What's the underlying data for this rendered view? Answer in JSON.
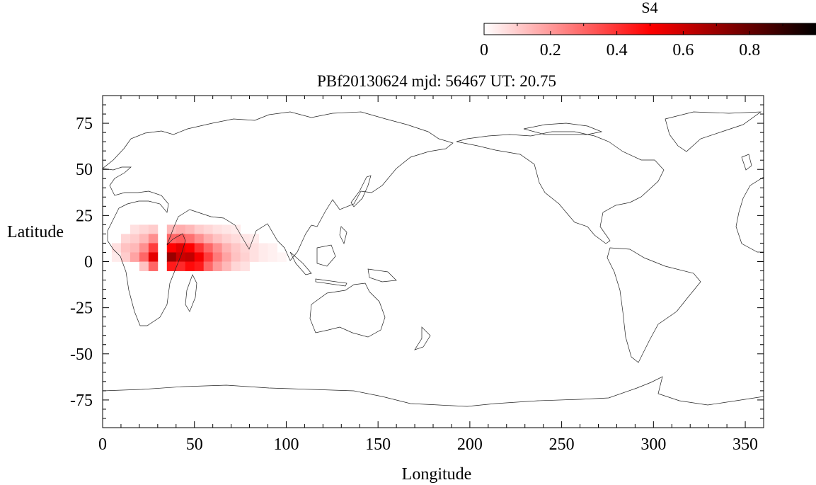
{
  "title": "PBf20130624  mjd: 56467  UT:  20.75",
  "colorbar": {
    "label": "S4",
    "range": [
      0,
      1
    ],
    "ticks": [
      "0",
      "0.2",
      "0.4",
      "0.6",
      "0.8"
    ],
    "tick_values": [
      0,
      0.2,
      0.4,
      0.6,
      0.8
    ],
    "colors": [
      "#ffffff",
      "#ff0000",
      "#000000"
    ]
  },
  "chart_data": {
    "type": "heatmap",
    "title": "PBf20130624  mjd: 56467  UT:  20.75",
    "xlabel": "Longitude",
    "ylabel": "Latitude",
    "xlim": [
      0,
      360
    ],
    "ylim": [
      -90,
      90
    ],
    "x_ticks": [
      "0",
      "50",
      "100",
      "150",
      "200",
      "250",
      "300",
      "350"
    ],
    "x_tick_values": [
      0,
      50,
      100,
      150,
      200,
      250,
      300,
      350
    ],
    "y_ticks": [
      "75",
      "50",
      "25",
      "0",
      "-25",
      "-50",
      "-75"
    ],
    "y_tick_values": [
      75,
      50,
      25,
      0,
      -25,
      -50,
      -75
    ],
    "value_label": "S4",
    "cells": [
      {
        "lon": [
          5,
          10
        ],
        "lat": [
          5,
          10
        ],
        "value": 0.06
      },
      {
        "lon": [
          5,
          10
        ],
        "lat": [
          0,
          5
        ],
        "value": 0.04
      },
      {
        "lon": [
          10,
          15
        ],
        "lat": [
          10,
          15
        ],
        "value": 0.08
      },
      {
        "lon": [
          10,
          15
        ],
        "lat": [
          5,
          10
        ],
        "value": 0.12
      },
      {
        "lon": [
          10,
          15
        ],
        "lat": [
          0,
          5
        ],
        "value": 0.1
      },
      {
        "lon": [
          15,
          20
        ],
        "lat": [
          10,
          15
        ],
        "value": 0.1
      },
      {
        "lon": [
          15,
          20
        ],
        "lat": [
          5,
          10
        ],
        "value": 0.14
      },
      {
        "lon": [
          15,
          20
        ],
        "lat": [
          0,
          5
        ],
        "value": 0.18
      },
      {
        "lon": [
          15,
          20
        ],
        "lat": [
          15,
          20
        ],
        "value": 0.06
      },
      {
        "lon": [
          20,
          25
        ],
        "lat": [
          15,
          20
        ],
        "value": 0.08
      },
      {
        "lon": [
          20,
          25
        ],
        "lat": [
          10,
          15
        ],
        "value": 0.14
      },
      {
        "lon": [
          20,
          25
        ],
        "lat": [
          5,
          10
        ],
        "value": 0.22
      },
      {
        "lon": [
          20,
          25
        ],
        "lat": [
          0,
          5
        ],
        "value": 0.3
      },
      {
        "lon": [
          20,
          25
        ],
        "lat": [
          -5,
          0
        ],
        "value": 0.12
      },
      {
        "lon": [
          25,
          30
        ],
        "lat": [
          15,
          20
        ],
        "value": 0.1
      },
      {
        "lon": [
          25,
          30
        ],
        "lat": [
          10,
          15
        ],
        "value": 0.22
      },
      {
        "lon": [
          25,
          30
        ],
        "lat": [
          5,
          10
        ],
        "value": 0.38
      },
      {
        "lon": [
          25,
          30
        ],
        "lat": [
          0,
          5
        ],
        "value": 0.55
      },
      {
        "lon": [
          25,
          30
        ],
        "lat": [
          -5,
          0
        ],
        "value": 0.3
      },
      {
        "lon": [
          35,
          40
        ],
        "lat": [
          15,
          20
        ],
        "value": 0.14
      },
      {
        "lon": [
          35,
          40
        ],
        "lat": [
          10,
          15
        ],
        "value": 0.3
      },
      {
        "lon": [
          35,
          40
        ],
        "lat": [
          5,
          10
        ],
        "value": 0.5
      },
      {
        "lon": [
          35,
          40
        ],
        "lat": [
          0,
          5
        ],
        "value": 0.7
      },
      {
        "lon": [
          35,
          40
        ],
        "lat": [
          -5,
          0
        ],
        "value": 0.45
      },
      {
        "lon": [
          40,
          45
        ],
        "lat": [
          15,
          20
        ],
        "value": 0.16
      },
      {
        "lon": [
          40,
          45
        ],
        "lat": [
          10,
          15
        ],
        "value": 0.32
      },
      {
        "lon": [
          40,
          45
        ],
        "lat": [
          5,
          10
        ],
        "value": 0.55
      },
      {
        "lon": [
          40,
          45
        ],
        "lat": [
          0,
          5
        ],
        "value": 0.6
      },
      {
        "lon": [
          40,
          45
        ],
        "lat": [
          -5,
          0
        ],
        "value": 0.42
      },
      {
        "lon": [
          45,
          50
        ],
        "lat": [
          15,
          20
        ],
        "value": 0.14
      },
      {
        "lon": [
          45,
          50
        ],
        "lat": [
          10,
          15
        ],
        "value": 0.28
      },
      {
        "lon": [
          45,
          50
        ],
        "lat": [
          5,
          10
        ],
        "value": 0.5
      },
      {
        "lon": [
          45,
          50
        ],
        "lat": [
          0,
          5
        ],
        "value": 0.62
      },
      {
        "lon": [
          45,
          50
        ],
        "lat": [
          -5,
          0
        ],
        "value": 0.48
      },
      {
        "lon": [
          50,
          55
        ],
        "lat": [
          15,
          20
        ],
        "value": 0.1
      },
      {
        "lon": [
          50,
          55
        ],
        "lat": [
          10,
          15
        ],
        "value": 0.22
      },
      {
        "lon": [
          50,
          55
        ],
        "lat": [
          5,
          10
        ],
        "value": 0.4
      },
      {
        "lon": [
          50,
          55
        ],
        "lat": [
          0,
          5
        ],
        "value": 0.52
      },
      {
        "lon": [
          50,
          55
        ],
        "lat": [
          -5,
          0
        ],
        "value": 0.45
      },
      {
        "lon": [
          55,
          60
        ],
        "lat": [
          15,
          20
        ],
        "value": 0.08
      },
      {
        "lon": [
          55,
          60
        ],
        "lat": [
          10,
          15
        ],
        "value": 0.16
      },
      {
        "lon": [
          55,
          60
        ],
        "lat": [
          5,
          10
        ],
        "value": 0.3
      },
      {
        "lon": [
          55,
          60
        ],
        "lat": [
          0,
          5
        ],
        "value": 0.38
      },
      {
        "lon": [
          55,
          60
        ],
        "lat": [
          -5,
          0
        ],
        "value": 0.3
      },
      {
        "lon": [
          60,
          65
        ],
        "lat": [
          15,
          20
        ],
        "value": 0.06
      },
      {
        "lon": [
          60,
          65
        ],
        "lat": [
          10,
          15
        ],
        "value": 0.12
      },
      {
        "lon": [
          60,
          65
        ],
        "lat": [
          5,
          10
        ],
        "value": 0.22
      },
      {
        "lon": [
          60,
          65
        ],
        "lat": [
          0,
          5
        ],
        "value": 0.26
      },
      {
        "lon": [
          60,
          65
        ],
        "lat": [
          -5,
          0
        ],
        "value": 0.2
      },
      {
        "lon": [
          65,
          70
        ],
        "lat": [
          15,
          20
        ],
        "value": 0.05
      },
      {
        "lon": [
          65,
          70
        ],
        "lat": [
          10,
          15
        ],
        "value": 0.09
      },
      {
        "lon": [
          65,
          70
        ],
        "lat": [
          5,
          10
        ],
        "value": 0.15
      },
      {
        "lon": [
          65,
          70
        ],
        "lat": [
          0,
          5
        ],
        "value": 0.18
      },
      {
        "lon": [
          65,
          70
        ],
        "lat": [
          -5,
          0
        ],
        "value": 0.14
      },
      {
        "lon": [
          70,
          75
        ],
        "lat": [
          15,
          20
        ],
        "value": 0.04
      },
      {
        "lon": [
          70,
          75
        ],
        "lat": [
          10,
          15
        ],
        "value": 0.07
      },
      {
        "lon": [
          70,
          75
        ],
        "lat": [
          5,
          10
        ],
        "value": 0.11
      },
      {
        "lon": [
          70,
          75
        ],
        "lat": [
          0,
          5
        ],
        "value": 0.12
      },
      {
        "lon": [
          70,
          75
        ],
        "lat": [
          -5,
          0
        ],
        "value": 0.08
      },
      {
        "lon": [
          75,
          80
        ],
        "lat": [
          10,
          15
        ],
        "value": 0.05
      },
      {
        "lon": [
          75,
          80
        ],
        "lat": [
          5,
          10
        ],
        "value": 0.08
      },
      {
        "lon": [
          75,
          80
        ],
        "lat": [
          0,
          5
        ],
        "value": 0.09
      },
      {
        "lon": [
          75,
          80
        ],
        "lat": [
          -5,
          0
        ],
        "value": 0.06
      },
      {
        "lon": [
          80,
          85
        ],
        "lat": [
          10,
          15
        ],
        "value": 0.04
      },
      {
        "lon": [
          80,
          85
        ],
        "lat": [
          5,
          10
        ],
        "value": 0.06
      },
      {
        "lon": [
          80,
          85
        ],
        "lat": [
          0,
          5
        ],
        "value": 0.06
      },
      {
        "lon": [
          85,
          90
        ],
        "lat": [
          5,
          10
        ],
        "value": 0.04
      },
      {
        "lon": [
          85,
          90
        ],
        "lat": [
          0,
          5
        ],
        "value": 0.04
      },
      {
        "lon": [
          90,
          95
        ],
        "lat": [
          5,
          10
        ],
        "value": 0.03
      },
      {
        "lon": [
          90,
          95
        ],
        "lat": [
          0,
          5
        ],
        "value": 0.03
      },
      {
        "lon": [
          95,
          100
        ],
        "lat": [
          0,
          5
        ],
        "value": 0.02
      }
    ]
  }
}
